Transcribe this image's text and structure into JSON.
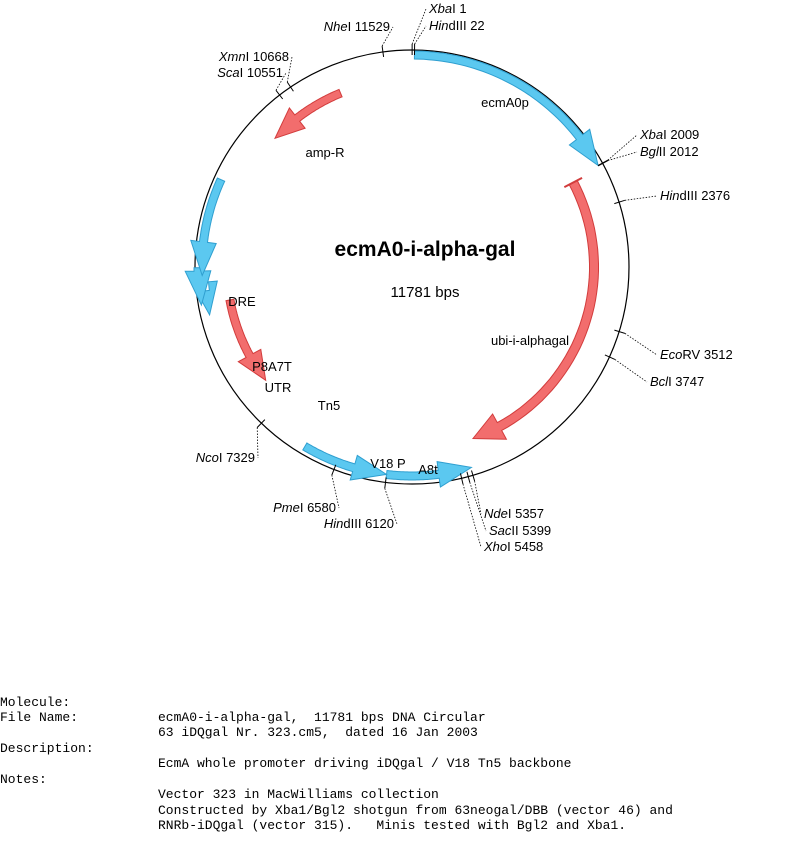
{
  "map": {
    "name": "ecmA0-i-alpha-gal",
    "length_label": "11781 bps",
    "total_bp": 11781
  },
  "sites": [
    {
      "name": "XbaI",
      "italic": "Xba",
      "rest": "I",
      "pos": 1,
      "label": "1"
    },
    {
      "name": "HindIII",
      "italic": "Hin",
      "rest": "dIII",
      "pos": 22,
      "label": "22"
    },
    {
      "name": "XbaI",
      "italic": "Xba",
      "rest": "I",
      "pos": 2009,
      "label": "2009"
    },
    {
      "name": "BglII",
      "italic": "Bgl",
      "rest": "II",
      "pos": 2012,
      "label": "2012"
    },
    {
      "name": "HindIII",
      "italic": "Hin",
      "rest": "dIII",
      "pos": 2376,
      "label": "2376"
    },
    {
      "name": "EcoRV",
      "italic": "Eco",
      "rest": "RV",
      "pos": 3512,
      "label": "3512"
    },
    {
      "name": "BclI",
      "italic": "Bcl",
      "rest": "I",
      "pos": 3747,
      "label": "3747"
    },
    {
      "name": "NdeI",
      "italic": "Nde",
      "rest": "I",
      "pos": 5357,
      "label": "5357"
    },
    {
      "name": "SacII",
      "italic": "Sac",
      "rest": "II",
      "pos": 5399,
      "label": "5399"
    },
    {
      "name": "XhoI",
      "italic": "Xho",
      "rest": "I",
      "pos": 5458,
      "label": "5458"
    },
    {
      "name": "HindIII",
      "italic": "Hin",
      "rest": "dIII",
      "pos": 6120,
      "label": "6120"
    },
    {
      "name": "PmeI",
      "italic": "Pme",
      "rest": "I",
      "pos": 6580,
      "label": "6580"
    },
    {
      "name": "NcoI",
      "italic": "Nco",
      "rest": "I",
      "pos": 7329,
      "label": "7329"
    },
    {
      "name": "ScaI",
      "italic": "Sca",
      "rest": "I",
      "pos": 10551,
      "label": "10551"
    },
    {
      "name": "XmnI",
      "italic": "Xmn",
      "rest": "I",
      "pos": 10668,
      "label": "10668"
    },
    {
      "name": "NheI",
      "italic": "Nhe",
      "rest": "I",
      "pos": 11529,
      "label": "11529"
    }
  ],
  "features": [
    {
      "name": "ecmA0p",
      "start": 22,
      "end": 2009,
      "strand": 1,
      "color": "#5bc8f0"
    },
    {
      "name": "ubi-i-alphagal",
      "start": 2040,
      "end": 5250,
      "strand": 1,
      "color": "#f26d6d"
    },
    {
      "name": "V18 P",
      "start": 5350,
      "end": 6120,
      "strand": -1,
      "color": "#5bc8f0"
    },
    {
      "name": "A8t",
      "start": 6120,
      "end": 6900,
      "strand": -1,
      "color": "#5bc8f0"
    },
    {
      "name": "Tn5",
      "start": 7600,
      "end": 8500,
      "strand": -1,
      "color": "#f26d6d"
    },
    {
      "name": "UTR",
      "start": 8400,
      "end": 8620,
      "strand": -1,
      "color": "#5bc8f0"
    },
    {
      "name": "P8A7T",
      "start": 8500,
      "end": 8830,
      "strand": -1,
      "color": "#5bc8f0"
    },
    {
      "name": "DRE",
      "start": 8760,
      "end": 9640,
      "strand": -1,
      "color": "#5bc8f0"
    },
    {
      "name": "amp-R",
      "start": 10250,
      "end": 11050,
      "strand": -1,
      "color": "#f26d6d"
    }
  ],
  "info": {
    "molecule_key": "Molecule:",
    "molecule_val": "ecmA0-i-alpha-gal,  11781 bps DNA Circular",
    "filename_key": "File Name:",
    "filename_val": "63 iDQgal Nr. 323.cm5,  dated 16 Jan 2003",
    "description_key": "Description:",
    "description_val": "EcmA whole promoter driving iDQgal / V18 Tn5 backbone",
    "notes_key": "Notes:",
    "notes_val": "Vector 323 in MacWilliams collection",
    "notes_line2": "Constructed by Xba1/Bgl2 shotgun from 63neogal/DBB (vector 46) and",
    "notes_line3": "RNRb-iDQgal (vector 315).   Minis tested with Bgl2 and Xba1."
  }
}
